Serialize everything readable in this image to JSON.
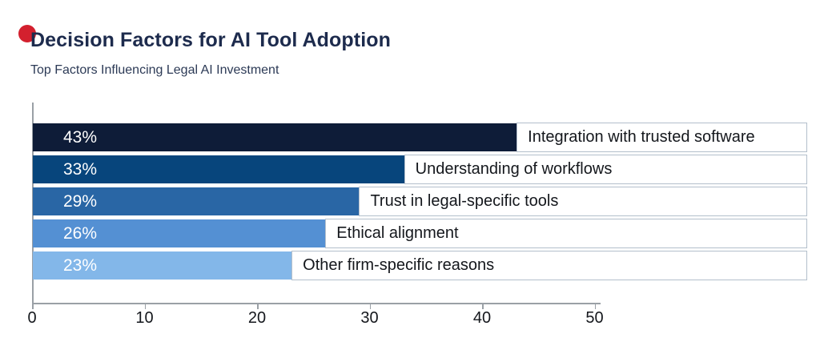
{
  "header": {
    "title": "Decision Factors for AI Tool Adoption",
    "subtitle": "Top Factors Influencing Legal AI Investment"
  },
  "brand": {
    "dot_color": "#d3202e"
  },
  "palette": {
    "title_navy": "#1d2b4d",
    "subtitle_navy": "#2c3a56",
    "axis_gray": "#9aa0a6",
    "tick_text": "#14171c",
    "category_text": "#14171c",
    "label_box_border": "#b3bfcb",
    "bar_value_text": "#ffffff"
  },
  "chart_data": {
    "type": "bar",
    "orientation": "horizontal",
    "title": "Decision Factors for AI Tool Adoption",
    "subtitle": "Top Factors Influencing Legal AI Investment",
    "categories": [
      "Integration with trusted software",
      "Understanding of workflows",
      "Trust in legal-specific tools",
      "Ethical alignment",
      "Other firm-specific reasons"
    ],
    "values": [
      43,
      33,
      29,
      26,
      23
    ],
    "value_labels": [
      "43%",
      "33%",
      "29%",
      "26%",
      "23%"
    ],
    "bar_colors": [
      "#0e1c38",
      "#07457c",
      "#2966a5",
      "#5490d3",
      "#83b7e9"
    ],
    "xlim": [
      0,
      50
    ],
    "x_ticks": [
      0,
      10,
      20,
      30,
      40,
      50
    ],
    "x_tick_labels": [
      "0",
      "10",
      "20",
      "30",
      "40",
      "50"
    ],
    "grid": false,
    "legend": false
  }
}
